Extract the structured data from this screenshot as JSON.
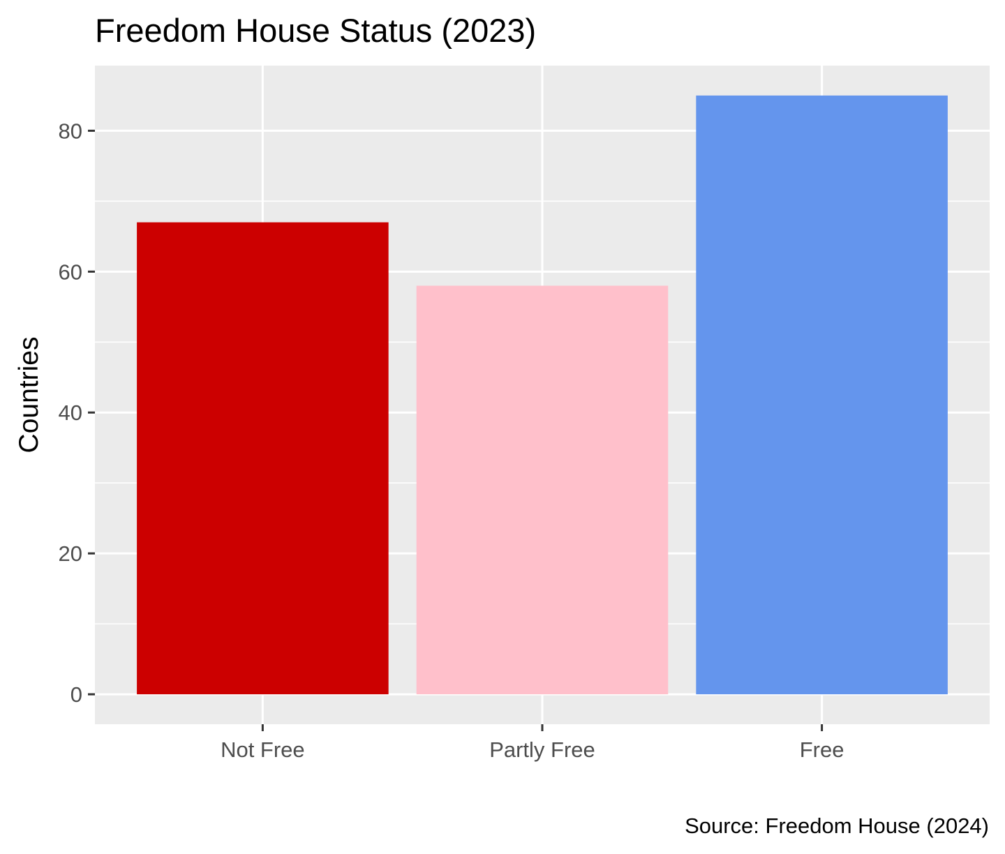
{
  "chart_data": {
    "type": "bar",
    "title": "Freedom House Status (2023)",
    "xlabel": "",
    "ylabel": "Countries",
    "caption": "Source: Freedom House (2024)",
    "categories": [
      "Not Free",
      "Partly Free",
      "Free"
    ],
    "values": [
      67,
      58,
      85
    ],
    "colors": [
      "#CC0000",
      "#FFC0CB",
      "#6495ED"
    ],
    "ylim": [
      -4.25,
      89.25
    ],
    "yticks": [
      0,
      20,
      40,
      60,
      80
    ],
    "ytick_labels": [
      "0",
      "20",
      "40",
      "60",
      "80"
    ],
    "grid": true,
    "legend": "none",
    "panel_background": "#EBEBEB",
    "grid_color": "#FFFFFF"
  }
}
